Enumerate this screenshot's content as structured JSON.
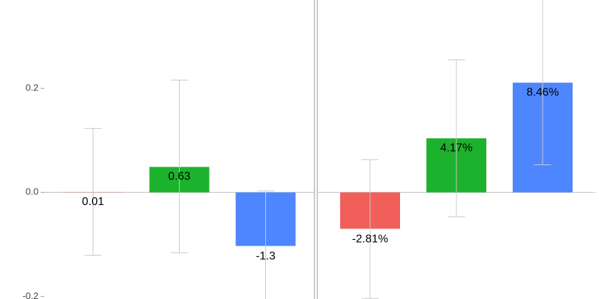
{
  "chart_data": [
    {
      "type": "bar",
      "values": [
        0.0005,
        0.049,
        -0.103
      ],
      "err_high": [
        0.123,
        0.216,
        0.003
      ],
      "err_low": [
        -0.121,
        -0.116,
        -0.21
      ],
      "bar_labels": [
        "0.01",
        "0.63",
        "-1.3"
      ],
      "colors": [
        "#f05f5a",
        "#1db22d",
        "#4e86ff"
      ],
      "ylim": [
        -0.205,
        0.37
      ],
      "yticks": [
        -0.2,
        {
          "value": 0,
          "label": "0.0"
        },
        0.2
      ]
    },
    {
      "type": "bar",
      "values": [
        -0.07,
        0.104,
        0.211
      ],
      "err_high": [
        0.063,
        0.255,
        0.372
      ],
      "err_low": [
        -0.204,
        -0.047,
        0.053
      ],
      "bar_labels": [
        "-2.81%",
        "4.17%",
        "8.46%"
      ],
      "colors": [
        "#f05f5a",
        "#1db22d",
        "#4e86ff"
      ],
      "ylim": [
        -0.205,
        0.37
      ]
    }
  ]
}
